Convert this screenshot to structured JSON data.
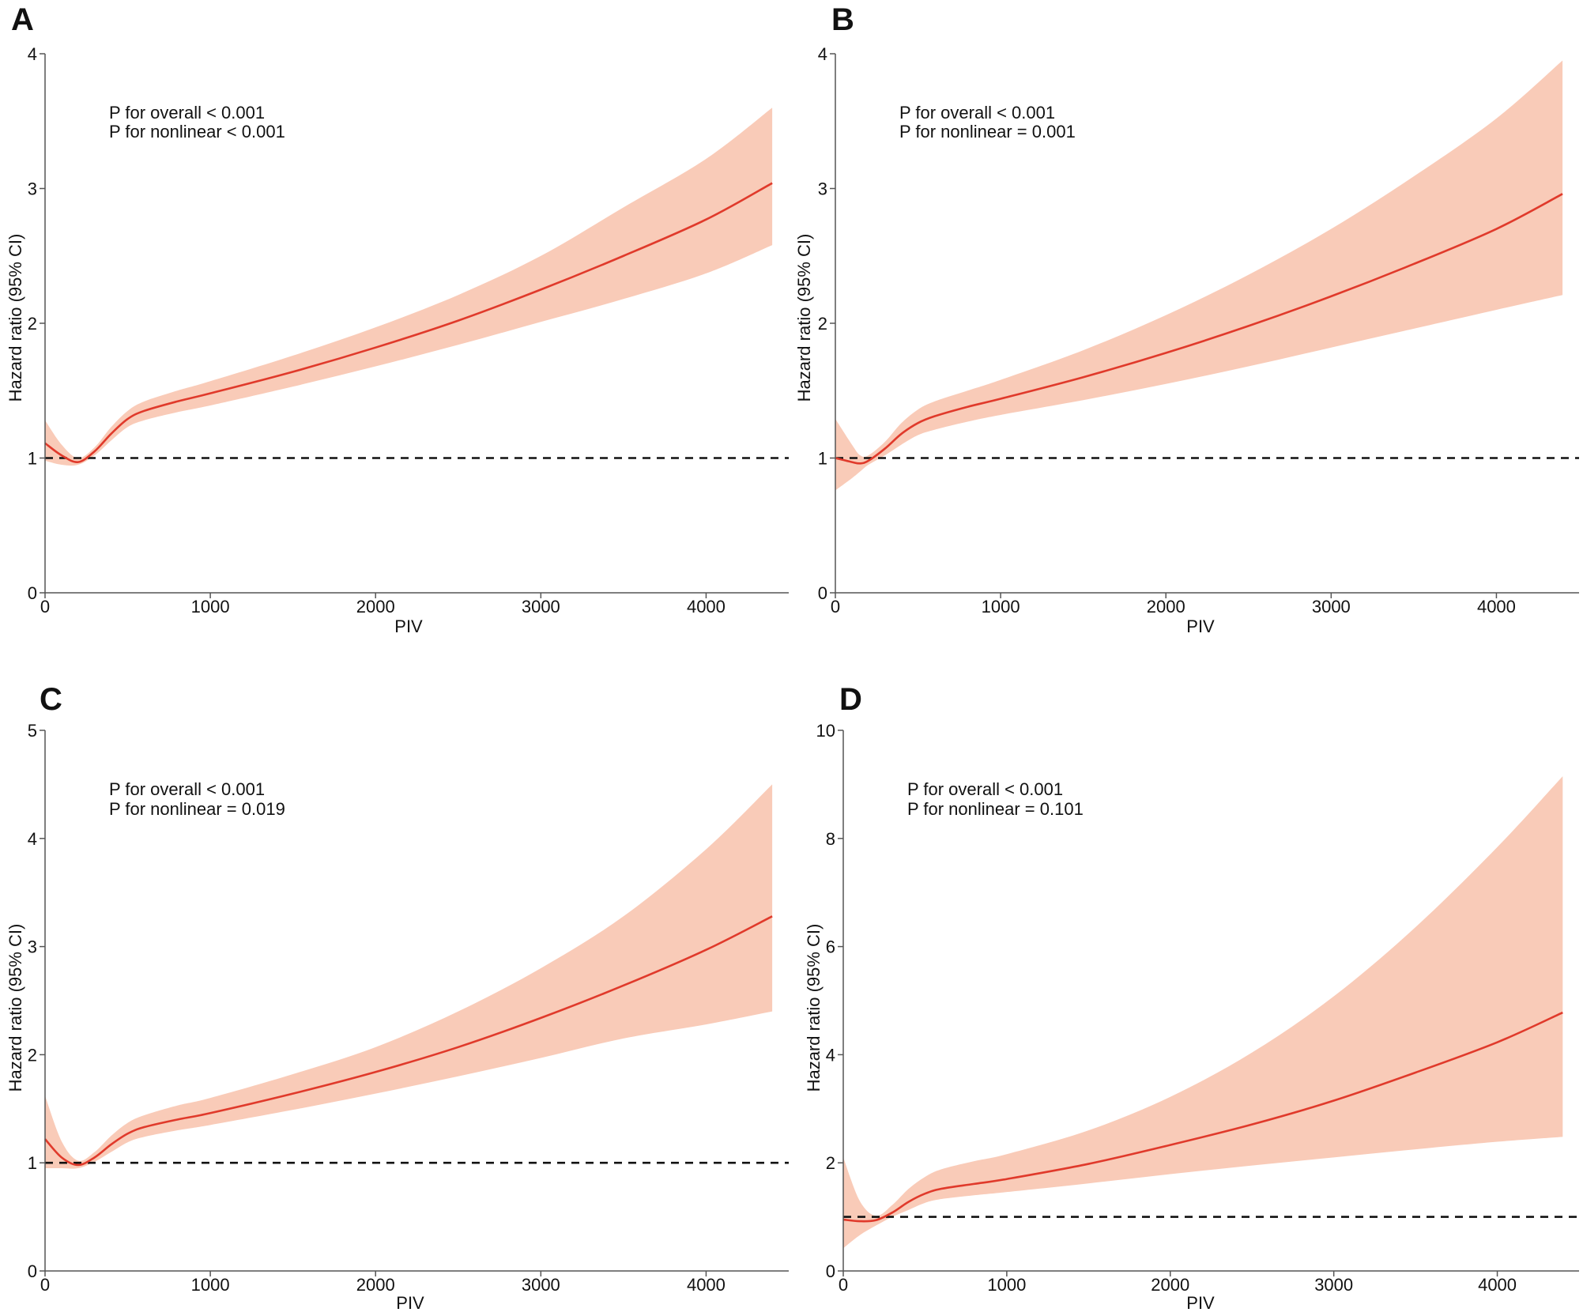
{
  "figure": {
    "colors": {
      "curve": "#e03a2b",
      "band": "#f9cbb8",
      "reference": "#111111",
      "axis": "#555555"
    }
  },
  "chart_data": [
    {
      "type": "line",
      "panel": "A",
      "xlabel": "PIV",
      "ylabel": "Hazard ratio (95% CI)",
      "xlim": [
        0,
        4500
      ],
      "ylim": [
        0,
        4
      ],
      "xticks": [
        0,
        1000,
        2000,
        3000,
        4000
      ],
      "yticks": [
        0,
        1,
        2,
        3,
        4
      ],
      "reference_line": 1,
      "annotations": [
        "P for overall < 0.001",
        "P for nonlinear < 0.001"
      ],
      "series": [
        {
          "name": "Hazard ratio",
          "x": [
            0,
            100,
            200,
            300,
            400,
            500,
            600,
            800,
            1000,
            1500,
            2000,
            2500,
            3000,
            3500,
            4000,
            4400
          ],
          "y": [
            1.11,
            1.02,
            0.97,
            1.05,
            1.18,
            1.29,
            1.35,
            1.42,
            1.48,
            1.64,
            1.82,
            2.02,
            2.25,
            2.5,
            2.77,
            3.04
          ],
          "lower": [
            0.98,
            0.95,
            0.95,
            1.02,
            1.13,
            1.23,
            1.28,
            1.34,
            1.39,
            1.53,
            1.68,
            1.84,
            2.01,
            2.18,
            2.37,
            2.58
          ],
          "upper": [
            1.28,
            1.1,
            1.0,
            1.08,
            1.23,
            1.35,
            1.42,
            1.5,
            1.57,
            1.76,
            1.97,
            2.21,
            2.5,
            2.86,
            3.22,
            3.6
          ]
        }
      ]
    },
    {
      "type": "line",
      "panel": "B",
      "xlabel": "PIV",
      "ylabel": "Hazard ratio (95% CI)",
      "xlim": [
        0,
        4500
      ],
      "ylim": [
        0,
        4
      ],
      "xticks": [
        0,
        1000,
        2000,
        3000,
        4000
      ],
      "yticks": [
        0,
        1,
        2,
        3,
        4
      ],
      "reference_line": 1,
      "annotations": [
        "P for overall < 0.001",
        "P for nonlinear = 0.001"
      ],
      "series": [
        {
          "name": "Hazard ratio",
          "x": [
            0,
            100,
            150,
            200,
            300,
            400,
            500,
            600,
            800,
            1000,
            1500,
            2000,
            2500,
            3000,
            3500,
            4000,
            4400
          ],
          "y": [
            1.0,
            0.97,
            0.96,
            0.98,
            1.07,
            1.18,
            1.26,
            1.31,
            1.38,
            1.44,
            1.6,
            1.78,
            1.98,
            2.2,
            2.44,
            2.7,
            2.96
          ],
          "lower": [
            0.76,
            0.85,
            0.9,
            0.95,
            1.02,
            1.1,
            1.17,
            1.21,
            1.27,
            1.32,
            1.43,
            1.55,
            1.68,
            1.82,
            1.96,
            2.1,
            2.21
          ],
          "upper": [
            1.29,
            1.1,
            1.02,
            1.02,
            1.12,
            1.26,
            1.36,
            1.42,
            1.5,
            1.58,
            1.8,
            2.06,
            2.36,
            2.7,
            3.09,
            3.52,
            3.95
          ]
        }
      ]
    },
    {
      "type": "line",
      "panel": "C",
      "xlabel": "PIV",
      "ylabel": "Hazard ratio (95% CI)",
      "xlim": [
        0,
        4500
      ],
      "ylim": [
        0,
        5
      ],
      "xticks": [
        0,
        1000,
        2000,
        3000,
        4000
      ],
      "yticks": [
        0,
        1,
        2,
        3,
        4,
        5
      ],
      "reference_line": 1,
      "annotations": [
        "P for overall < 0.001",
        "P for nonlinear = 0.019"
      ],
      "series": [
        {
          "name": "Hazard ratio",
          "x": [
            0,
            100,
            200,
            300,
            400,
            500,
            600,
            800,
            1000,
            1500,
            2000,
            2500,
            3000,
            3500,
            4000,
            4400
          ],
          "y": [
            1.22,
            1.05,
            0.98,
            1.05,
            1.17,
            1.27,
            1.33,
            1.4,
            1.46,
            1.64,
            1.84,
            2.07,
            2.34,
            2.64,
            2.97,
            3.28
          ],
          "lower": [
            0.95,
            0.95,
            0.95,
            1.01,
            1.1,
            1.19,
            1.24,
            1.3,
            1.35,
            1.49,
            1.64,
            1.8,
            1.97,
            2.15,
            2.28,
            2.4
          ],
          "upper": [
            1.62,
            1.2,
            1.02,
            1.1,
            1.25,
            1.37,
            1.44,
            1.53,
            1.6,
            1.82,
            2.07,
            2.4,
            2.8,
            3.28,
            3.9,
            4.5
          ]
        }
      ]
    },
    {
      "type": "line",
      "panel": "D",
      "xlabel": "PIV",
      "ylabel": "Hazard ratio (95% CI)",
      "xlim": [
        0,
        4500
      ],
      "ylim": [
        0,
        10
      ],
      "xticks": [
        0,
        1000,
        2000,
        3000,
        4000
      ],
      "yticks": [
        0,
        2,
        4,
        6,
        8,
        10
      ],
      "reference_line": 1,
      "annotations": [
        "P for overall < 0.001",
        "P for nonlinear = 0.101"
      ],
      "series": [
        {
          "name": "Hazard ratio",
          "x": [
            0,
            100,
            200,
            300,
            400,
            500,
            600,
            800,
            1000,
            1500,
            2000,
            2500,
            3000,
            3500,
            4000,
            4400
          ],
          "y": [
            0.95,
            0.92,
            0.94,
            1.08,
            1.28,
            1.43,
            1.52,
            1.61,
            1.7,
            1.98,
            2.33,
            2.71,
            3.15,
            3.67,
            4.23,
            4.78
          ],
          "lower": [
            0.42,
            0.66,
            0.84,
            1.0,
            1.13,
            1.26,
            1.33,
            1.4,
            1.46,
            1.62,
            1.79,
            1.95,
            2.1,
            2.25,
            2.39,
            2.48
          ],
          "upper": [
            2.1,
            1.3,
            1.02,
            1.22,
            1.52,
            1.74,
            1.88,
            2.03,
            2.16,
            2.6,
            3.22,
            4.04,
            5.08,
            6.36,
            7.84,
            9.15
          ]
        }
      ]
    }
  ]
}
